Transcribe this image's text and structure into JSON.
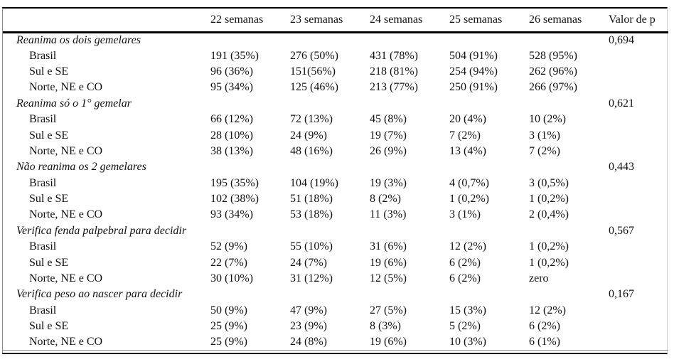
{
  "table": {
    "columns": [
      "",
      "22 semanas",
      "23 semanas",
      "24 semanas",
      "25 semanas",
      "26 semanas",
      "Valor de p"
    ],
    "sections": [
      {
        "title": "Reanima os dois gemelares",
        "p_value": "0,694",
        "rows": [
          {
            "label": "Brasil",
            "values": [
              "191 (35%)",
              "276 (50%)",
              "431 (78%)",
              "504 (91%)",
              "528 (95%)"
            ]
          },
          {
            "label": "Sul e SE",
            "values": [
              "96 (36%)",
              "151(56%)",
              "218 (81%)",
              "254 (94%)",
              "262 (96%)"
            ]
          },
          {
            "label": "Norte, NE e CO",
            "values": [
              "95 (34%)",
              "125 (46%)",
              "213 (77%)",
              "250 (91%)",
              "266 (97%)"
            ]
          }
        ]
      },
      {
        "title": "Reanima só o 1° gemelar",
        "p_value": "0,621",
        "rows": [
          {
            "label": "Brasil",
            "values": [
              "66 (12%)",
              "72 (13%)",
              "45 (8%)",
              "20 (4%)",
              "10 (2%)"
            ]
          },
          {
            "label": "Sul e SE",
            "values": [
              "28 (10%)",
              "24 (9%)",
              "19 (7%)",
              "7 (2%)",
              "3 (1%)"
            ]
          },
          {
            "label": "Norte, NE e CO",
            "values": [
              "38 (13%)",
              "48 (16%)",
              "26 (9%)",
              "13 (4%)",
              "7 (2%)"
            ]
          }
        ]
      },
      {
        "title": "Não reanima os 2 gemelares",
        "p_value": "0,443",
        "rows": [
          {
            "label": "Brasil",
            "values": [
              "195 (35%)",
              "104 (19%)",
              "19 (3%)",
              "4 (0,7%)",
              "3 (0,5%)"
            ]
          },
          {
            "label": "Sul e SE",
            "values": [
              "102 (38%)",
              "51 (18%)",
              "8 (2%)",
              "1 (0,2%)",
              "1 (0,2%)"
            ]
          },
          {
            "label": "Norte, NE e CO",
            "values": [
              "93 (34%)",
              "53 (18%)",
              "11 (3%)",
              "3 (1%)",
              "2 (0,4%)"
            ]
          }
        ]
      },
      {
        "title": "Verifica fenda palpebral para decidir",
        "p_value": "0,567",
        "rows": [
          {
            "label": "Brasil",
            "values": [
              "52 (9%)",
              "55 (10%)",
              "31 (6%)",
              "12 (2%)",
              "1 (0,2%)"
            ]
          },
          {
            "label": "Sul e SE",
            "values": [
              "22 (7%)",
              "24 (7%)",
              "19 (6%)",
              "6 (2%)",
              "1 (0,2%)"
            ]
          },
          {
            "label": "Norte, NE e CO",
            "values": [
              "30 (10%)",
              "31 (12%)",
              "12 (5%)",
              "6 (2%)",
              "zero"
            ]
          }
        ]
      },
      {
        "title": "Verifica peso ao nascer para decidir",
        "p_value": "0,167",
        "rows": [
          {
            "label": "Brasil",
            "values": [
              "50 (9%)",
              "47 (9%)",
              "27 (5%)",
              "15 (3%)",
              "12 (2%)"
            ]
          },
          {
            "label": "Sul e SE",
            "values": [
              "25 (9%)",
              "23 (9%)",
              "8 (3%)",
              "5 (2%)",
              "6 (2%)"
            ]
          },
          {
            "label": "Norte, NE e CO",
            "values": [
              "25 (9%)",
              "24 (8%)",
              "19 (6%)",
              "10 (3%)",
              "6 (1%)"
            ]
          }
        ]
      }
    ]
  }
}
